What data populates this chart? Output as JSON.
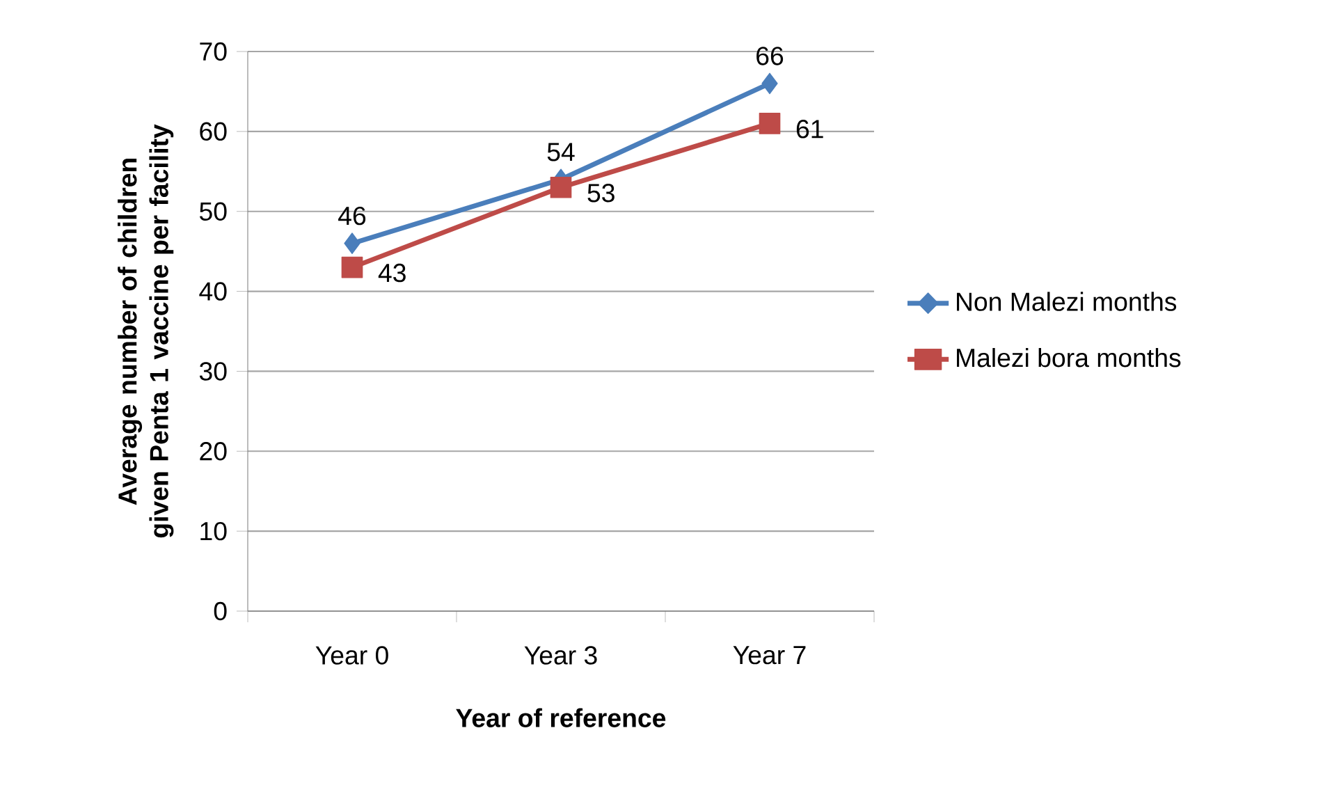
{
  "chart_data": {
    "type": "line",
    "xlabel": "Year of reference",
    "ylabel": "Average number of children given Penta 1 vaccine per facility",
    "categories": [
      "Year 0",
      "Year 3",
      "Year 7"
    ],
    "series": [
      {
        "name": "Non Malezi months",
        "color": "#4a7ebb",
        "marker": "diamond",
        "values": [
          46,
          54,
          66
        ]
      },
      {
        "name": "Malezi bora months",
        "color": "#be4b48",
        "marker": "square",
        "values": [
          43,
          53,
          61
        ]
      }
    ],
    "ylim": [
      0,
      70
    ],
    "yticks": [
      0,
      10,
      20,
      30,
      40,
      50,
      60,
      70
    ],
    "grid": "y",
    "legend": "right",
    "data_labels": true
  }
}
